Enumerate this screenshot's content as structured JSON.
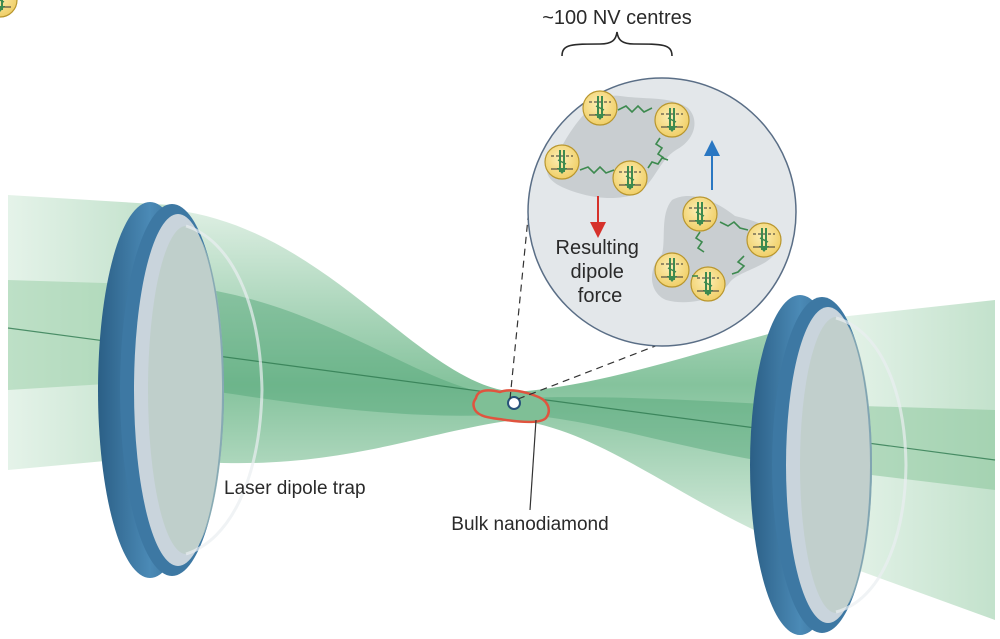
{
  "labels": {
    "nv_centres": "~100 NV centres",
    "dipole_force": [
      "Resulting",
      "dipole",
      "force"
    ],
    "laser_trap": "Laser dipole trap",
    "nanodiamond": "Bulk nanodiamond"
  },
  "colors": {
    "beam_light": "#cfe6d6",
    "beam_mid": "#8fc9a2",
    "beam_dark": "#3f9a69",
    "ring_blue": "#3d78a3",
    "ring_blue_dark": "#2b5f86",
    "ring_inner": "#c9d4dc",
    "circle_fill": "#e3e7ea",
    "cluster_fill": "#c9ced1",
    "nv_fill": "#f6df8a",
    "nv_stroke": "#b8962e",
    "arrow_green": "#3d8a4f",
    "arrow_red": "#d6312b",
    "arrow_blue": "#2a77c2",
    "diamond_outline": "#e0543f"
  },
  "icons": {
    "nv_centre": "nv-centre-icon",
    "mirror": "mirror-icon",
    "nanodiamond": "nanodiamond-icon"
  }
}
